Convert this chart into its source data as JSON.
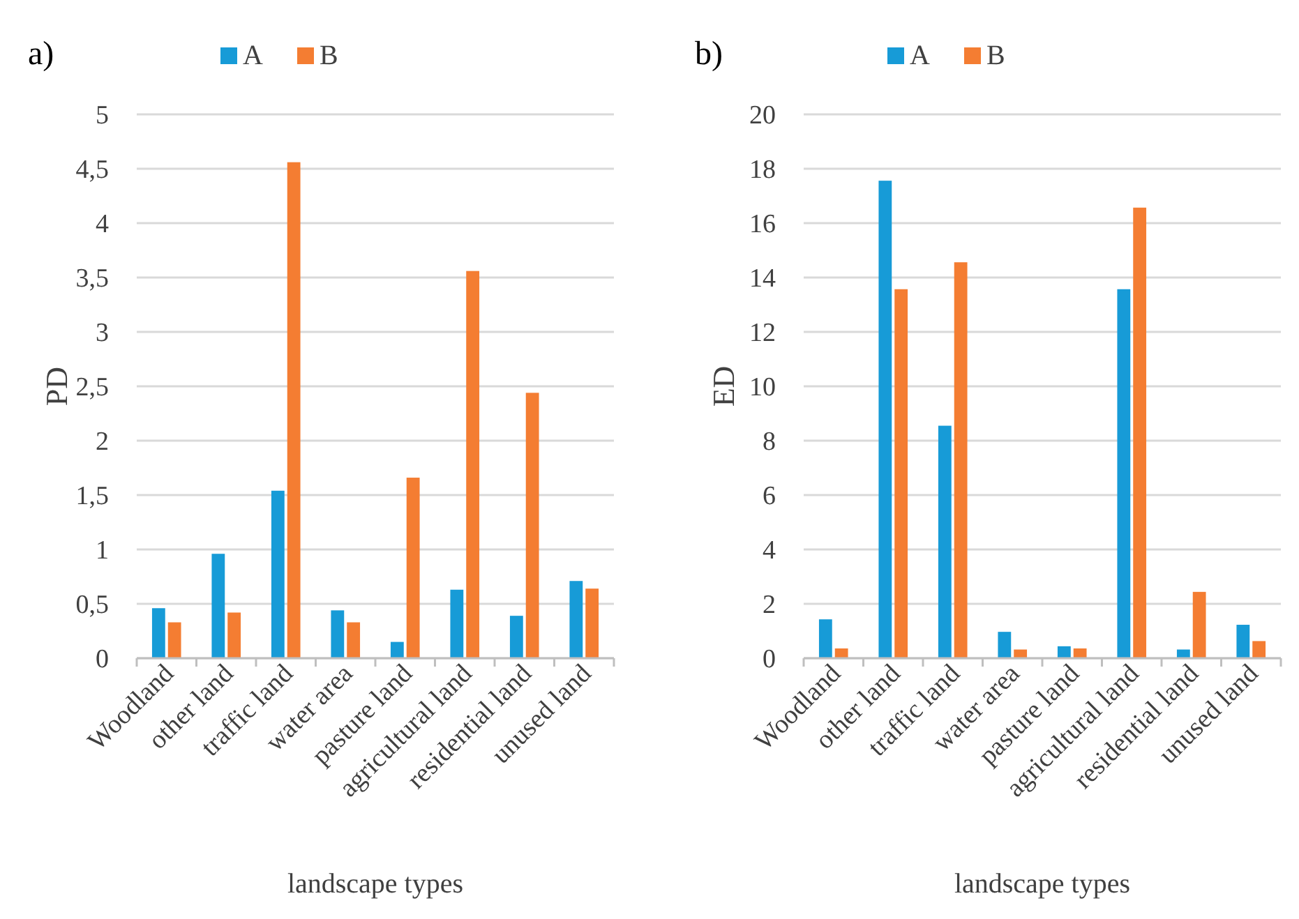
{
  "chart_data": [
    {
      "type": "bar",
      "title": "a)",
      "xlabel": "landscape types",
      "ylabel": "PD",
      "categories": [
        "Woodland",
        "other land",
        "traffic land",
        "water area",
        "pasture land",
        "agricultural land",
        "residential land",
        "unused land"
      ],
      "series": [
        {
          "name": "A",
          "color": "#179bd7",
          "values": [
            0.46,
            0.96,
            1.54,
            0.44,
            0.15,
            0.63,
            0.39,
            0.71
          ]
        },
        {
          "name": "B",
          "color": "#f47d32",
          "values": [
            0.33,
            0.42,
            4.56,
            0.33,
            1.66,
            3.56,
            2.44,
            0.64
          ]
        }
      ],
      "ylim": [
        0,
        5
      ],
      "yticks": [
        0,
        {
          "value": 0.5,
          "label": "0,5"
        },
        1,
        {
          "value": 1.5,
          "label": "1,5"
        },
        2,
        {
          "value": 2.5,
          "label": "2,5"
        },
        3,
        {
          "value": 3.5,
          "label": "3,5"
        },
        4,
        {
          "value": 4.5,
          "label": "4,5"
        },
        5
      ],
      "grid": "y",
      "legend": "top"
    },
    {
      "type": "bar",
      "title": "b)",
      "xlabel": "landscape types",
      "ylabel": "ED",
      "categories": [
        "Woodland",
        "other land",
        "traffic land",
        "water area",
        "pasture land",
        "agricultural land",
        "residential land",
        "unused land"
      ],
      "series": [
        {
          "name": "A",
          "color": "#179bd7",
          "values": [
            1.43,
            17.56,
            8.55,
            0.97,
            0.44,
            13.57,
            0.32,
            1.23
          ]
        },
        {
          "name": "B",
          "color": "#f47d32",
          "values": [
            0.36,
            13.57,
            14.56,
            0.32,
            0.36,
            16.57,
            2.44,
            0.63
          ]
        }
      ],
      "ylim": [
        0,
        20
      ],
      "yticks": [
        0,
        2,
        4,
        6,
        8,
        10,
        12,
        14,
        16,
        18,
        20
      ],
      "grid": "y",
      "legend": "top"
    }
  ]
}
